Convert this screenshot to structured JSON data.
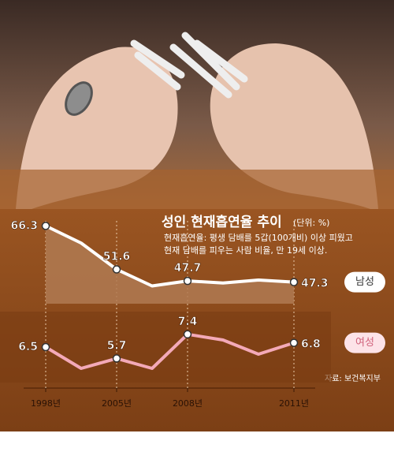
{
  "chart_data": {
    "type": "line",
    "title": "성인 현재흡연율 추이",
    "unit": "(단위: %)",
    "subtitle": [
      "현재흡연율: 평생 담배를 5갑(100개비) 이상 피웠고",
      "현재 담배를 피우는 사람 비율, 만 19세 이상."
    ],
    "source": "자료: 보건복지부",
    "categories": [
      "1998년",
      null,
      "2005년",
      null,
      "2008년",
      null,
      null,
      "2011년"
    ],
    "series": [
      {
        "name": "남성",
        "color": "#ffffff",
        "values": [
          66.3,
          60.5,
          51.6,
          46.0,
          47.7,
          47.0,
          48.0,
          47.3
        ],
        "value_labels": [
          "66.3",
          null,
          "51.6",
          null,
          "47.7",
          null,
          null,
          "47.3"
        ],
        "ylim": [
          40,
          68
        ]
      },
      {
        "name": "여성",
        "color": "#f3a9b8",
        "values": [
          6.5,
          5.0,
          5.7,
          5.0,
          7.4,
          7.0,
          6.0,
          6.8
        ],
        "value_labels": [
          "6.5",
          null,
          "5.7",
          null,
          "7.4",
          null,
          null,
          "6.8"
        ],
        "ylim": [
          4,
          9
        ]
      }
    ]
  }
}
